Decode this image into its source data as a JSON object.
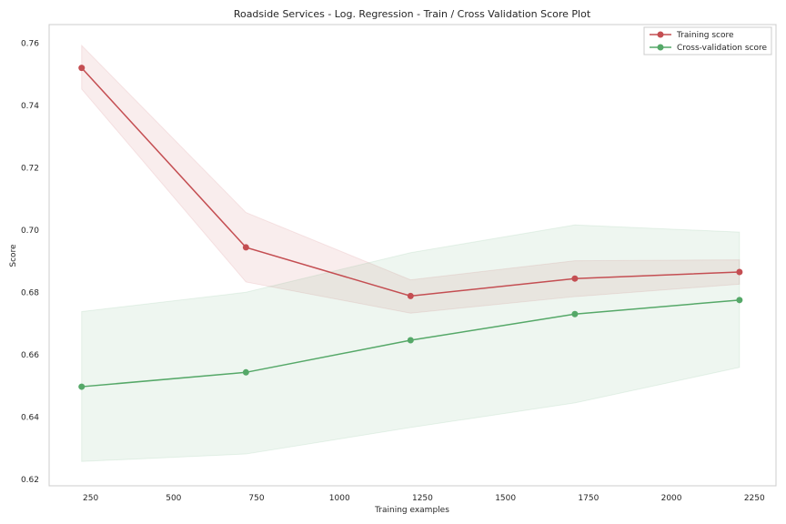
{
  "chart_data": {
    "type": "line",
    "title": "Roadside Services - Log. Regression - Train / Cross Validation Score Plot",
    "xlabel": "Training examples",
    "ylabel": "Score",
    "xlim": [
      125,
      2315
    ],
    "ylim": [
      0.618,
      0.766
    ],
    "xticks": [
      250,
      500,
      750,
      1000,
      1250,
      1500,
      1750,
      2000,
      2250
    ],
    "yticks": [
      0.62,
      0.64,
      0.66,
      0.68,
      0.7,
      0.72,
      0.74,
      0.76
    ],
    "grid": false,
    "legend_position": "top-right",
    "x": [
      223,
      718,
      1214,
      1709,
      2205
    ],
    "series": [
      {
        "name": "Training score",
        "color": "#c44e52",
        "values": [
          0.7521,
          0.6945,
          0.6789,
          0.6845,
          0.6866
        ],
        "band_upper": [
          0.7593,
          0.7057,
          0.6841,
          0.6902,
          0.6905
        ],
        "band_lower": [
          0.7453,
          0.6834,
          0.6734,
          0.6787,
          0.6827
        ]
      },
      {
        "name": "Cross-validation score",
        "color": "#55a868",
        "values": [
          0.6498,
          0.6544,
          0.6647,
          0.6731,
          0.6776
        ],
        "band_upper": [
          0.6739,
          0.6801,
          0.6928,
          0.7017,
          0.6994
        ],
        "band_lower": [
          0.6258,
          0.6282,
          0.6367,
          0.6446,
          0.656
        ]
      }
    ]
  }
}
